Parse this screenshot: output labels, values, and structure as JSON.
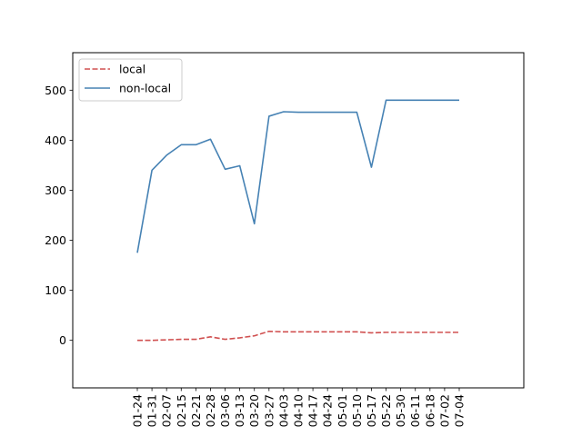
{
  "chart_data": {
    "type": "line",
    "categories": [
      "01-24",
      "01-31",
      "02-07",
      "02-15",
      "02-21",
      "02-28",
      "03-06",
      "03-13",
      "03-20",
      "03-27",
      "04-03",
      "04-10",
      "04-17",
      "04-24",
      "05-01",
      "05-10",
      "05-17",
      "05-22",
      "05-30",
      "06-11",
      "06-18",
      "07-02",
      "07-04"
    ],
    "series": [
      {
        "name": "local",
        "color": "#d05050",
        "dash": "dashed",
        "values": [
          0,
          0,
          1,
          2,
          2,
          7,
          2,
          5,
          9,
          18,
          17,
          17,
          17,
          17,
          17,
          17,
          15,
          16,
          16,
          16,
          16,
          16,
          16
        ]
      },
      {
        "name": "non-local",
        "color": "#4682b4",
        "dash": "solid",
        "values": [
          175,
          340,
          370,
          391,
          391,
          402,
          342,
          349,
          233,
          448,
          457,
          456,
          456,
          456,
          456,
          456,
          346,
          480,
          480,
          480,
          480,
          480,
          480
        ]
      }
    ],
    "ylim": [
      -95,
      575
    ],
    "yticks": [
      0,
      100,
      200,
      300,
      400,
      500
    ],
    "legend": "top-left",
    "grid": false,
    "title": "",
    "xlabel": "",
    "ylabel": ""
  }
}
